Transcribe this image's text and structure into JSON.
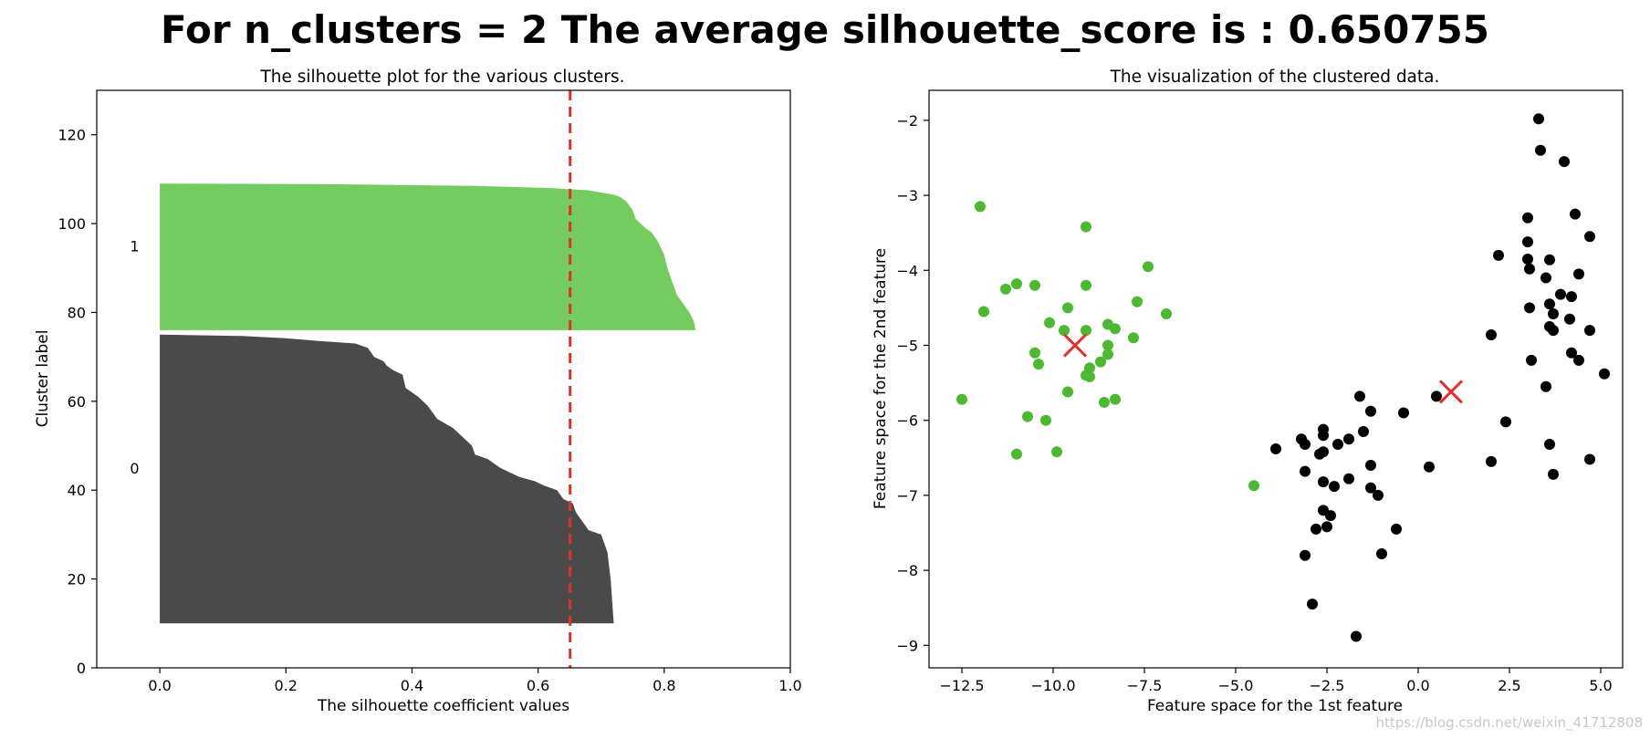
{
  "suptitle": "For n_clusters = 2  The average silhouette_score is : 0.650755",
  "watermark": "https://blog.csdn.net/weixin_41712808",
  "colors": {
    "cluster_0": "#000000",
    "cluster_1": "#4db832",
    "cluster_0_fill": "#4a4a4a",
    "cluster_1_fill": "#75cc5e",
    "avg_line": "#e0312a",
    "center_marker": "#e0312a"
  },
  "chart_data": [
    {
      "type": "area",
      "title": "The silhouette plot for the various clusters.",
      "xlabel": "The silhouette coefficient values",
      "ylabel": "Cluster label",
      "xlim": [
        -0.1,
        1.0
      ],
      "ylim": [
        0,
        130
      ],
      "xticks": [
        0.0,
        0.2,
        0.4,
        0.6,
        0.8,
        1.0
      ],
      "xtick_labels": [
        "0.0",
        "0.2",
        "0.4",
        "0.6",
        "0.8",
        "1.0"
      ],
      "yticks": [
        0,
        20,
        40,
        60,
        80,
        100,
        120
      ],
      "ytick_labels": [
        "0",
        "20",
        "40",
        "60",
        "80",
        "100",
        "120"
      ],
      "average_silhouette": 0.650755,
      "grid": false,
      "clusters": [
        {
          "label": "0",
          "label_y": 45,
          "y_range": [
            10,
            75
          ],
          "profile": [
            [
              10,
              0.72
            ],
            [
              20,
              0.715
            ],
            [
              26,
              0.71
            ],
            [
              30,
              0.7
            ],
            [
              31,
              0.68
            ],
            [
              33,
              0.67
            ],
            [
              35,
              0.66
            ],
            [
              37,
              0.655
            ],
            [
              38,
              0.64
            ],
            [
              40,
              0.63
            ],
            [
              41,
              0.61
            ],
            [
              42,
              0.595
            ],
            [
              43,
              0.57
            ],
            [
              44,
              0.555
            ],
            [
              45,
              0.54
            ],
            [
              46,
              0.53
            ],
            [
              47,
              0.52
            ],
            [
              48,
              0.5
            ],
            [
              50,
              0.495
            ],
            [
              52,
              0.48
            ],
            [
              54,
              0.465
            ],
            [
              56,
              0.44
            ],
            [
              58,
              0.43
            ],
            [
              59,
              0.425
            ],
            [
              61,
              0.41
            ],
            [
              62,
              0.4
            ],
            [
              63,
              0.39
            ],
            [
              66,
              0.385
            ],
            [
              67,
              0.37
            ],
            [
              68,
              0.36
            ],
            [
              69,
              0.355
            ],
            [
              70,
              0.34
            ],
            [
              71,
              0.335
            ],
            [
              72,
              0.33
            ],
            [
              73,
              0.31
            ],
            [
              73.6,
              0.25
            ],
            [
              74.2,
              0.2
            ],
            [
              74.7,
              0.13
            ],
            [
              75,
              0.0
            ]
          ]
        },
        {
          "label": "1",
          "label_y": 95,
          "y_range": [
            76,
            109
          ],
          "profile": [
            [
              76,
              0.85
            ],
            [
              78,
              0.847
            ],
            [
              80,
              0.84
            ],
            [
              82,
              0.83
            ],
            [
              84,
              0.82
            ],
            [
              86,
              0.815
            ],
            [
              88,
              0.81
            ],
            [
              90,
              0.805
            ],
            [
              93,
              0.8
            ],
            [
              96,
              0.79
            ],
            [
              98,
              0.78
            ],
            [
              99,
              0.77
            ],
            [
              101,
              0.755
            ],
            [
              103,
              0.75
            ],
            [
              104,
              0.745
            ],
            [
              105,
              0.74
            ],
            [
              106,
              0.73
            ],
            [
              106.5,
              0.72
            ],
            [
              107,
              0.7
            ],
            [
              107.5,
              0.68
            ],
            [
              108,
              0.62
            ],
            [
              108.5,
              0.5
            ],
            [
              108.9,
              0.25
            ],
            [
              109,
              0.0
            ]
          ]
        }
      ]
    },
    {
      "type": "scatter",
      "title": "The visualization of the clustered data.",
      "xlabel": "Feature space for the 1st feature",
      "ylabel": "Feature space for the 2nd feature",
      "xlim": [
        -13.4,
        5.6
      ],
      "ylim": [
        -9.3,
        -1.6
      ],
      "xticks": [
        -12.5,
        -10.0,
        -7.5,
        -5.0,
        -2.5,
        0.0,
        2.5,
        5.0
      ],
      "xtick_labels": [
        "−12.5",
        "−10.0",
        "−7.5",
        "−5.0",
        "−2.5",
        "0.0",
        "2.5",
        "5.0"
      ],
      "yticks": [
        -2,
        -3,
        -4,
        -5,
        -6,
        -7,
        -8,
        -9
      ],
      "ytick_labels": [
        "−2",
        "−3",
        "−4",
        "−5",
        "−6",
        "−7",
        "−8",
        "−9"
      ],
      "grid": false,
      "series": [
        {
          "cluster": 1,
          "points": [
            [
              -12.0,
              -3.15
            ],
            [
              -9.1,
              -3.42
            ],
            [
              -11.3,
              -4.25
            ],
            [
              -11.0,
              -4.18
            ],
            [
              -10.5,
              -4.2
            ],
            [
              -9.1,
              -4.2
            ],
            [
              -7.4,
              -3.95
            ],
            [
              -11.9,
              -4.55
            ],
            [
              -9.6,
              -4.5
            ],
            [
              -7.7,
              -4.42
            ],
            [
              -6.9,
              -4.58
            ],
            [
              -10.1,
              -4.7
            ],
            [
              -8.5,
              -4.72
            ],
            [
              -9.7,
              -4.8
            ],
            [
              -9.1,
              -4.8
            ],
            [
              -8.3,
              -4.78
            ],
            [
              -7.8,
              -4.9
            ],
            [
              -8.5,
              -5.0
            ],
            [
              -10.5,
              -5.1
            ],
            [
              -8.5,
              -5.12
            ],
            [
              -9.0,
              -5.3
            ],
            [
              -8.7,
              -5.22
            ],
            [
              -10.4,
              -5.25
            ],
            [
              -9.1,
              -5.4
            ],
            [
              -9.0,
              -5.42
            ],
            [
              -9.6,
              -5.62
            ],
            [
              -12.5,
              -5.72
            ],
            [
              -8.6,
              -5.76
            ],
            [
              -8.3,
              -5.72
            ],
            [
              -10.7,
              -5.95
            ],
            [
              -10.2,
              -6.0
            ],
            [
              -11.0,
              -6.45
            ],
            [
              -9.9,
              -6.42
            ],
            [
              -4.5,
              -6.87
            ]
          ]
        },
        {
          "cluster": 0,
          "points": [
            [
              3.3,
              -1.98
            ],
            [
              3.35,
              -2.4
            ],
            [
              4.0,
              -2.55
            ],
            [
              3.0,
              -3.3
            ],
            [
              4.3,
              -3.25
            ],
            [
              4.7,
              -3.55
            ],
            [
              3.0,
              -3.62
            ],
            [
              2.2,
              -3.8
            ],
            [
              3.6,
              -3.86
            ],
            [
              3.0,
              -3.85
            ],
            [
              3.05,
              -3.98
            ],
            [
              3.5,
              -4.1
            ],
            [
              4.4,
              -4.05
            ],
            [
              3.9,
              -4.32
            ],
            [
              4.2,
              -4.35
            ],
            [
              3.05,
              -4.5
            ],
            [
              3.6,
              -4.45
            ],
            [
              3.7,
              -4.58
            ],
            [
              4.15,
              -4.65
            ],
            [
              3.6,
              -4.75
            ],
            [
              3.7,
              -4.8
            ],
            [
              4.7,
              -4.8
            ],
            [
              2.0,
              -4.86
            ],
            [
              4.2,
              -5.1
            ],
            [
              4.4,
              -5.2
            ],
            [
              3.1,
              -5.2
            ],
            [
              5.1,
              -5.38
            ],
            [
              3.5,
              -5.55
            ],
            [
              0.5,
              -5.68
            ],
            [
              2.4,
              -6.02
            ],
            [
              -1.6,
              -5.68
            ],
            [
              -0.4,
              -5.9
            ],
            [
              -1.3,
              -5.88
            ],
            [
              -1.5,
              -6.15
            ],
            [
              -2.6,
              -6.12
            ],
            [
              -2.6,
              -6.2
            ],
            [
              -1.9,
              -6.25
            ],
            [
              -3.2,
              -6.25
            ],
            [
              -3.1,
              -6.32
            ],
            [
              -2.2,
              -6.32
            ],
            [
              -2.6,
              -6.42
            ],
            [
              -2.7,
              -6.45
            ],
            [
              -3.9,
              -6.38
            ],
            [
              -1.3,
              -6.6
            ],
            [
              0.3,
              -6.62
            ],
            [
              -3.1,
              -6.68
            ],
            [
              -2.6,
              -6.82
            ],
            [
              -1.9,
              -6.78
            ],
            [
              -2.3,
              -6.88
            ],
            [
              -1.3,
              -6.9
            ],
            [
              -1.1,
              -7.0
            ],
            [
              2.0,
              -6.55
            ],
            [
              4.7,
              -6.52
            ],
            [
              3.6,
              -6.32
            ],
            [
              3.7,
              -6.72
            ],
            [
              -2.6,
              -7.2
            ],
            [
              -2.4,
              -7.27
            ],
            [
              -2.8,
              -7.45
            ],
            [
              -2.5,
              -7.42
            ],
            [
              -0.6,
              -7.45
            ],
            [
              -3.1,
              -7.8
            ],
            [
              -1.0,
              -7.78
            ],
            [
              -2.9,
              -8.45
            ],
            [
              -1.7,
              -8.88
            ]
          ]
        }
      ],
      "centers": [
        {
          "cluster": 1,
          "x": -9.4,
          "y": -5.0
        },
        {
          "cluster": 0,
          "x": 0.9,
          "y": -5.62
        }
      ]
    }
  ]
}
